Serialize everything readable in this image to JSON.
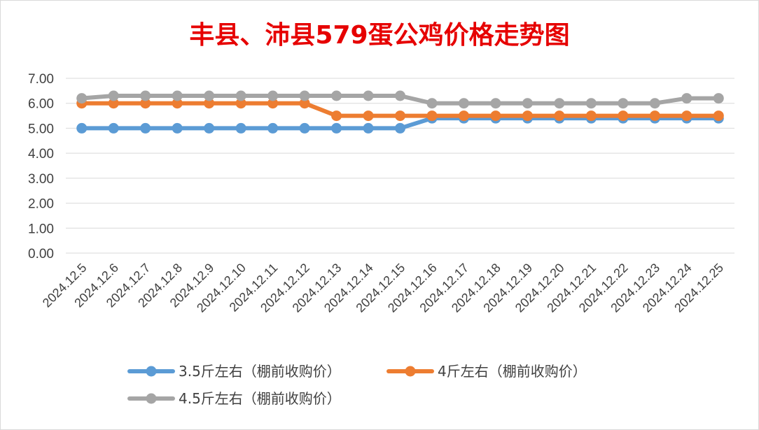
{
  "chart_data": {
    "type": "line",
    "title": "丰县、沛县579蛋公鸡价格走势图",
    "title_color": "#e60000",
    "xlabel": "",
    "ylabel": "",
    "ylim": [
      0,
      7
    ],
    "y_ticks": [
      "0.00",
      "1.00",
      "2.00",
      "3.00",
      "4.00",
      "5.00",
      "6.00",
      "7.00"
    ],
    "grid": true,
    "legend_position": "bottom",
    "categories": [
      "2024.12.5",
      "2024.12.6",
      "2024.12.7",
      "2024.12.8",
      "2024.12.9",
      "2024.12.10",
      "2024.12.11",
      "2024.12.12",
      "2024.12.13",
      "2024.12.14",
      "2024.12.15",
      "2024.12.16",
      "2024.12.17",
      "2024.12.18",
      "2024.12.19",
      "2024.12.20",
      "2024.12.21",
      "2024.12.22",
      "2024.12.23",
      "2024.12.24",
      "2024.12.25"
    ],
    "series": [
      {
        "name": "3.5斤左右（棚前收购价）",
        "color": "#5b9bd5",
        "values": [
          5.0,
          5.0,
          5.0,
          5.0,
          5.0,
          5.0,
          5.0,
          5.0,
          5.0,
          5.0,
          5.0,
          5.4,
          5.4,
          5.4,
          5.4,
          5.4,
          5.4,
          5.4,
          5.4,
          5.4,
          5.4
        ]
      },
      {
        "name": "4斤左右（棚前收购价）",
        "color": "#ed7d31",
        "values": [
          6.0,
          6.0,
          6.0,
          6.0,
          6.0,
          6.0,
          6.0,
          6.0,
          5.5,
          5.5,
          5.5,
          5.5,
          5.5,
          5.5,
          5.5,
          5.5,
          5.5,
          5.5,
          5.5,
          5.5,
          5.5
        ]
      },
      {
        "name": "4.5斤左右（棚前收购价）",
        "color": "#a5a5a5",
        "values": [
          6.2,
          6.3,
          6.3,
          6.3,
          6.3,
          6.3,
          6.3,
          6.3,
          6.3,
          6.3,
          6.3,
          6.0,
          6.0,
          6.0,
          6.0,
          6.0,
          6.0,
          6.0,
          6.0,
          6.2,
          6.2
        ]
      }
    ]
  }
}
